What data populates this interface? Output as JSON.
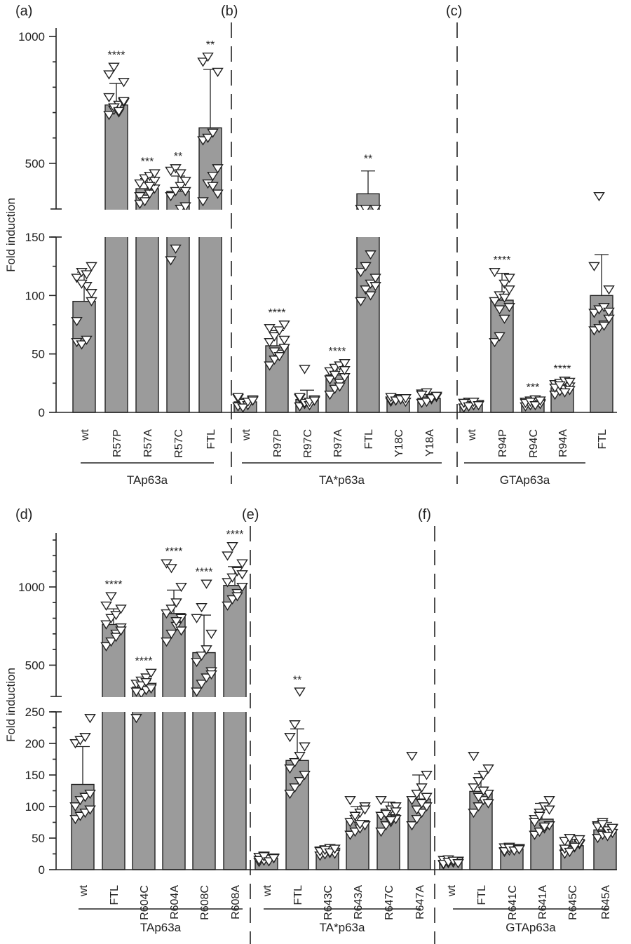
{
  "chart_data": [
    {
      "type": "bar",
      "top_row": true,
      "ylabel": "Fold induction",
      "panels": [
        {
          "label": "(a)",
          "group_label": "TAp63a",
          "categories": [
            "wt",
            "R57P",
            "R57A",
            "R57C",
            "FTL"
          ],
          "values": [
            95,
            730,
            400,
            390,
            640
          ],
          "sd": [
            25,
            85,
            40,
            60,
            230
          ],
          "stars": [
            "",
            "****",
            "***",
            "**",
            "**"
          ],
          "points": [
            [
              60,
              58,
              62,
              95,
              115,
              120,
              108,
              102,
              78,
              110,
              118,
              125
            ],
            [
              690,
              710,
              730,
              740,
              760,
              720,
              700,
              820,
              850,
              880,
              705,
              745
            ],
            [
              340,
              360,
              380,
              400,
              420,
              440,
              450,
              430,
              370,
              350,
              410,
              460
            ],
            [
              130,
              140,
              300,
              330,
              370,
              390,
              410,
              430,
              470,
              480,
              460,
              390
            ],
            [
              350,
              420,
              450,
              480,
              590,
              600,
              620,
              860,
              900,
              920,
              410,
              380
            ]
          ]
        },
        {
          "label": "(b)",
          "group_label": "TA*p63a",
          "categories": [
            "wt",
            "R97P",
            "R97C",
            "R97A",
            "FTL",
            "Y18C",
            "Y18A"
          ],
          "values": [
            9,
            57,
            11,
            32,
            380,
            11,
            12
          ],
          "sd": [
            3,
            13,
            8,
            8,
            90,
            2,
            4
          ],
          "stars": [
            "",
            "****",
            "",
            "****",
            "**",
            "",
            ""
          ],
          "points": [
            [
              5,
              7,
              9,
              10,
              12,
              8,
              6,
              11,
              13,
              4,
              9,
              10
            ],
            [
              40,
              45,
              50,
              55,
              60,
              65,
              70,
              75,
              72,
              52,
              48,
              62
            ],
            [
              5,
              7,
              9,
              10,
              12,
              8,
              6,
              11,
              13,
              37,
              9,
              10
            ],
            [
              15,
              20,
              25,
              30,
              35,
              38,
              40,
              42,
              28,
              32,
              22,
              36
            ],
            [
              95,
              105,
              110,
              115,
              120,
              125,
              135,
              250,
              270,
              290,
              100,
              108
            ],
            [
              9,
              10,
              11,
              12,
              10,
              11,
              12,
              9,
              13,
              10,
              11,
              12
            ],
            [
              8,
              10,
              12,
              14,
              16,
              17,
              11,
              13,
              15,
              9,
              12,
              14
            ]
          ]
        },
        {
          "label": "(c)",
          "group_label": "GTAp63a",
          "categories": [
            "wt",
            "R94P",
            "R94C",
            "R94A",
            "FTL"
          ],
          "values": [
            7,
            96,
            8,
            21,
            100
          ],
          "sd": [
            2,
            23,
            3,
            4,
            35
          ],
          "stars": [
            "",
            "****",
            "***",
            "****",
            ""
          ],
          "points": [
            [
              4,
              5,
              6,
              7,
              8,
              9,
              6,
              7,
              8,
              5,
              9,
              6
            ],
            [
              60,
              65,
              80,
              90,
              95,
              100,
              110,
              115,
              120,
              88,
              98,
              105
            ],
            [
              5,
              6,
              7,
              8,
              9,
              10,
              11,
              7,
              8,
              9,
              6,
              10
            ],
            [
              15,
              18,
              20,
              22,
              24,
              25,
              27,
              19,
              21,
              23,
              17,
              26
            ],
            [
              70,
              72,
              75,
              80,
              85,
              88,
              90,
              105,
              125,
              370,
              74,
              86
            ]
          ]
        }
      ],
      "axis": {
        "break_low": 150,
        "break_high": 320,
        "top_max": 1000,
        "lower_ticks": [
          0,
          50,
          100,
          150
        ],
        "upper_ticks": [
          500,
          1000
        ]
      },
      "extra_stars": {
        "panel": 2,
        "star": "***"
      }
    },
    {
      "type": "bar",
      "top_row": false,
      "ylabel": "Fold induction",
      "panels": [
        {
          "label": "(d)",
          "group_label": "TAp63a",
          "categories": [
            "wt",
            "FTL",
            "R604C",
            "R604A",
            "R608C",
            "R608A"
          ],
          "values": [
            135,
            760,
            360,
            830,
            580,
            1010
          ],
          "sd": [
            60,
            100,
            40,
            150,
            240,
            120
          ],
          "stars": [
            "",
            "****",
            "****",
            "****",
            "****",
            "****"
          ],
          "points": [
            [
              80,
              85,
              90,
              95,
              100,
              110,
              115,
              120,
              200,
              205,
              210,
              240
            ],
            [
              620,
              650,
              700,
              740,
              760,
              800,
              820,
              860,
              880,
              940,
              680,
              720
            ],
            [
              240,
              320,
              340,
              360,
              380,
              400,
              420,
              450,
              330,
              370,
              390,
              350
            ],
            [
              650,
              700,
              750,
              800,
              830,
              860,
              900,
              1000,
              1150,
              1120,
              780,
              720
            ],
            [
              330,
              380,
              420,
              460,
              520,
              560,
              600,
              700,
              800,
              870,
              1020,
              440
            ],
            [
              880,
              920,
              960,
              1000,
              1030,
              1060,
              1100,
              1150,
              1200,
              1260,
              940,
              1080
            ]
          ]
        },
        {
          "label": "(e)",
          "group_label": "TA*p63a",
          "categories": [
            "wt",
            "FTL",
            "R643C",
            "R643A",
            "R647C",
            "R647A"
          ],
          "values": [
            18,
            173,
            28,
            78,
            87,
            112
          ],
          "sd": [
            4,
            50,
            6,
            22,
            20,
            38
          ],
          "stars": [
            "",
            "**",
            "",
            "",
            "",
            ""
          ],
          "points": [
            [
              12,
              14,
              16,
              18,
              20,
              22,
              17,
              19,
              15,
              21,
              13,
              18
            ],
            [
              120,
              130,
              140,
              150,
              160,
              170,
              180,
              195,
              210,
              230,
              330,
              150
            ],
            [
              22,
              24,
              26,
              28,
              30,
              32,
              34,
              25,
              29,
              31,
              27,
              33
            ],
            [
              55,
              60,
              65,
              70,
              75,
              80,
              90,
              100,
              110,
              85,
              72,
              95
            ],
            [
              60,
              70,
              75,
              80,
              85,
              90,
              95,
              100,
              110,
              88,
              78,
              92
            ],
            [
              70,
              80,
              90,
              100,
              110,
              120,
              130,
              150,
              180,
              95,
              105,
              115
            ]
          ]
        },
        {
          "label": "(f)",
          "group_label": "GTAp63a",
          "categories": [
            "wt",
            "FTL",
            "R641C",
            "R641A",
            "R645C",
            "R645A"
          ],
          "values": [
            13,
            124,
            33,
            80,
            38,
            63
          ],
          "sd": [
            3,
            28,
            4,
            25,
            10,
            12
          ],
          "stars": [
            "",
            "",
            "",
            "",
            "",
            ""
          ],
          "points": [
            [
              8,
              10,
              12,
              14,
              15,
              16,
              11,
              13,
              9,
              12,
              14,
              10
            ],
            [
              90,
              100,
              110,
              120,
              130,
              140,
              150,
              160,
              180,
              115,
              125,
              105
            ],
            [
              28,
              30,
              32,
              34,
              35,
              36,
              31,
              33,
              29,
              34,
              30,
              32
            ],
            [
              55,
              60,
              65,
              70,
              80,
              90,
              100,
              110,
              75,
              85,
              68,
              95
            ],
            [
              25,
              30,
              35,
              40,
              45,
              50,
              38,
              42,
              33,
              28,
              36,
              48
            ],
            [
              50,
              55,
              60,
              65,
              70,
              75,
              62,
              58,
              68,
              72,
              53,
              66
            ]
          ]
        }
      ],
      "axis": {
        "break_low": 250,
        "break_high": 300,
        "top_max": 1300,
        "lower_ticks": [
          0,
          50,
          100,
          150,
          200,
          250
        ],
        "upper_ticks": [
          500,
          1000
        ]
      }
    }
  ]
}
